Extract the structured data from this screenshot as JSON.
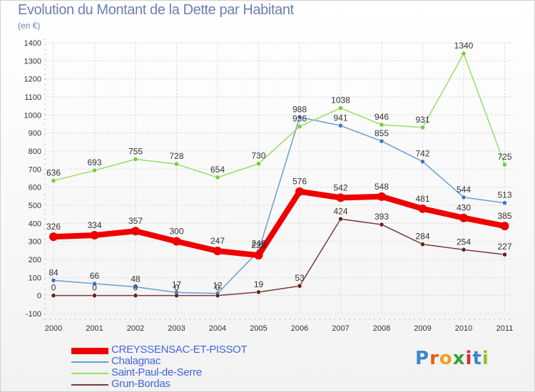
{
  "header": {
    "title": "Evolution du Montant de la Dette par Habitant",
    "subtitle": "(en €)"
  },
  "logo": {
    "text": "Proxiti",
    "letter_colors": [
      "#3a86d0",
      "#e85a1a",
      "#f0a020",
      "#3aa040",
      "#e02a2a",
      "#3a86d0",
      "#9ac020"
    ]
  },
  "chart_data": {
    "type": "line",
    "title": "Evolution du Montant de la Dette par Habitant",
    "subtitle": "(en €)",
    "x": [
      "2000",
      "2001",
      "2002",
      "2003",
      "2004",
      "2005",
      "2006",
      "2007",
      "2008",
      "2009",
      "2010",
      "2011"
    ],
    "ylim": [
      -100,
      1400
    ],
    "yticks": [
      -100,
      0,
      100,
      200,
      300,
      400,
      500,
      600,
      700,
      800,
      900,
      1000,
      1100,
      1200,
      1300,
      1400
    ],
    "grid": true,
    "legend_position": "bottom-left",
    "series": [
      {
        "name": "CREYSSENSAC-ET-PISSOT",
        "color": "#ee0000",
        "marker": "#ee0000",
        "bold": true,
        "values": [
          326,
          334,
          357,
          300,
          247,
          223,
          576,
          542,
          548,
          481,
          430,
          385
        ],
        "labels": [
          "326",
          "334",
          "357",
          "300",
          "247",
          "223",
          "576",
          "542",
          "548",
          "481",
          "430",
          "385"
        ]
      },
      {
        "name": "Chalagnac",
        "color": "#6a9fd0",
        "marker": "#3a78c0",
        "bold": false,
        "values": [
          84,
          66,
          48,
          17,
          12,
          246,
          988,
          941,
          855,
          742,
          544,
          513
        ],
        "labels": [
          "84",
          "66",
          "48",
          "17",
          "12",
          "246",
          "988",
          "941",
          "855",
          "742",
          "544",
          "513"
        ]
      },
      {
        "name": "Saint-Paul-de-Serre",
        "color": "#99dd66",
        "marker": "#77cc33",
        "bold": false,
        "values": [
          636,
          693,
          755,
          728,
          654,
          730,
          936,
          1038,
          946,
          931,
          1340,
          725
        ],
        "labels": [
          "636",
          "693",
          "755",
          "728",
          "654",
          "730",
          "936",
          "1038",
          "946",
          "931",
          "1340",
          "725"
        ]
      },
      {
        "name": "Grun-Bordas",
        "color": "#7a3a3a",
        "marker": "#6a2020",
        "bold": false,
        "values": [
          0,
          0,
          0,
          0,
          0,
          19,
          53,
          424,
          393,
          284,
          254,
          227
        ],
        "labels": [
          "0",
          "0",
          "0",
          "0",
          "0",
          "19",
          "53",
          "424",
          "393",
          "284",
          "254",
          "227"
        ]
      }
    ]
  }
}
